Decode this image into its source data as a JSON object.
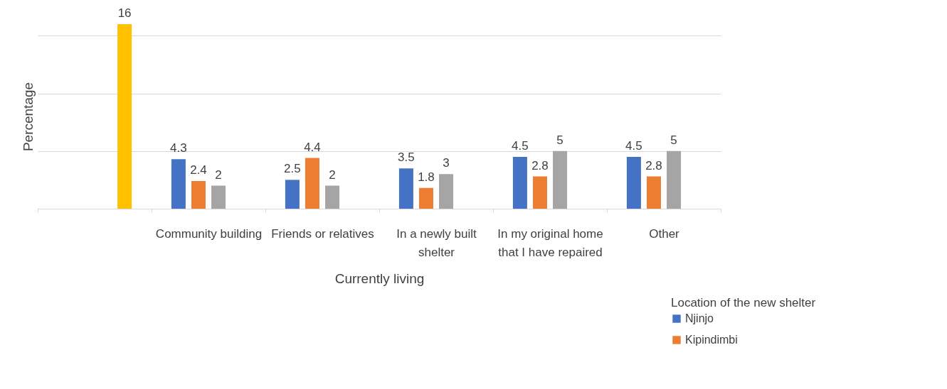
{
  "chart_data": {
    "type": "bar",
    "xlabel": "Currently living",
    "ylabel": "Percentage",
    "legend_title": "Location of the new shelter",
    "categories": [
      null,
      "Community building",
      "Friends or relatives",
      "In a newly built shelter",
      "In my original home that I have repaired",
      "Other"
    ],
    "series": [
      {
        "name": "Njinjo",
        "color": "#4472c4",
        "values": [
          null,
          4.3,
          2.5,
          3.5,
          4.5,
          4.5
        ]
      },
      {
        "name": "Kipindimbi",
        "color": "#ed7d31",
        "values": [
          null,
          2.4,
          4.4,
          1.8,
          2.8,
          2.8
        ]
      },
      {
        "color": "#a5a5a5",
        "values": [
          null,
          2,
          2,
          3,
          5,
          5
        ]
      },
      {
        "color": "#ffc000",
        "values": [
          16,
          null,
          null,
          null,
          null,
          null
        ]
      }
    ],
    "data_labels": true,
    "grid": "y",
    "legend": "bottom right",
    "tick_labels": "x"
  }
}
